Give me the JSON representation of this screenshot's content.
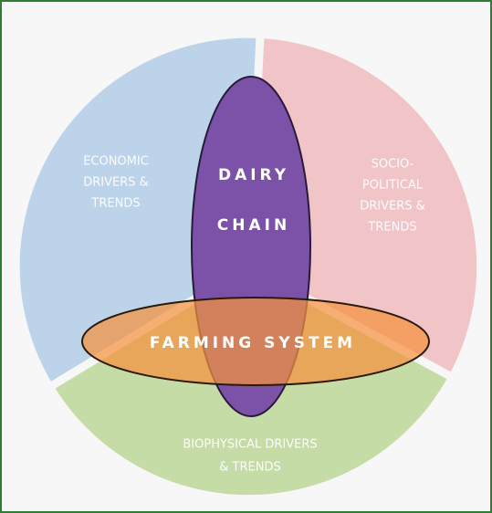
{
  "economic": {
    "lines": [
      "ECONOMIC",
      "DRIVERS &",
      "TRENDS"
    ]
  },
  "sociopolitical": {
    "lines": [
      "SOCIO-",
      "POLITICAL",
      "DRIVERS &",
      "TRENDS"
    ]
  },
  "biophysical": {
    "lines": [
      "BIOPHYSICAL DRIVERS",
      "& TRENDS"
    ]
  },
  "dairy_chain": {
    "lines": [
      "DAIRY",
      "CHAIN"
    ]
  },
  "farming_system": {
    "label": "FARMING SYSTEM"
  }
}
